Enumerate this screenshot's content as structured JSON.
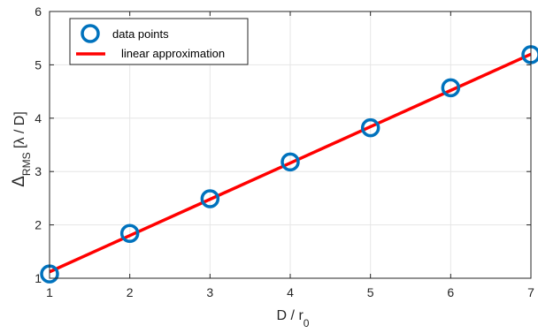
{
  "chart_data": {
    "type": "scatter",
    "x": [
      1,
      2,
      3,
      4,
      5,
      6,
      7
    ],
    "series": [
      {
        "name": "data points",
        "kind": "markers",
        "marker": "circle-open",
        "color": "#0072BD",
        "values": [
          1.08,
          1.84,
          2.49,
          3.18,
          3.82,
          4.57,
          5.19
        ]
      },
      {
        "name": "linear approximation",
        "kind": "line",
        "color": "#FF0000",
        "values": [
          1.12,
          1.8,
          2.48,
          3.16,
          3.84,
          4.52,
          5.2
        ]
      }
    ],
    "xlabel": "D / r",
    "xlabel_sub": "0",
    "ylabel_main": "Δ",
    "ylabel_sub": "RMS",
    "ylabel_tail": " [λ / D]",
    "xlim": [
      1,
      7
    ],
    "ylim": [
      1,
      6
    ],
    "xticks": [
      "1",
      "2",
      "3",
      "4",
      "5",
      "6",
      "7"
    ],
    "yticks": [
      "1",
      "2",
      "3",
      "4",
      "5",
      "6"
    ],
    "grid": true,
    "legend_position": "top-left",
    "axis_color": "#262626",
    "grid_color": "#e6e6e6"
  }
}
